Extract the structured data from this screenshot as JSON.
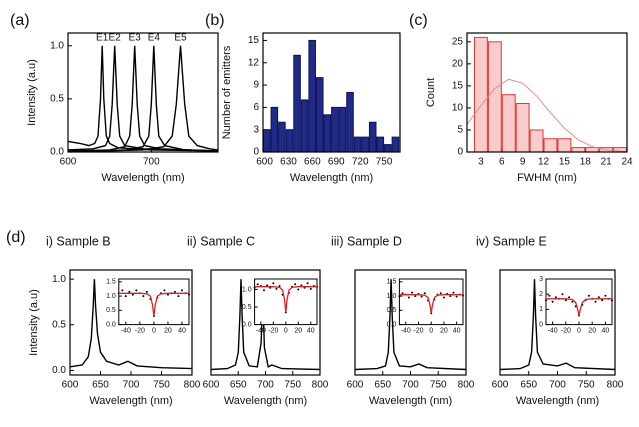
{
  "chart_data": [
    {
      "type": "line",
      "panel": "(a)",
      "x_label": "Wavelength (nm)",
      "y_label": "Intensity (a.u)",
      "xlim": [
        600,
        780
      ],
      "ylim": [
        0,
        1.12
      ],
      "xticks": [
        600,
        700
      ],
      "yticks": [
        {
          "value": 0,
          "label": "0.0"
        },
        {
          "value": 0.5,
          "label": "0.5"
        },
        {
          "value": 1,
          "label": "1.0"
        }
      ],
      "series": [
        {
          "name": "E1",
          "color": "#000000",
          "x": [
            600,
            615,
            625,
            632,
            636,
            639,
            641,
            643,
            646,
            650,
            660,
            700,
            780
          ],
          "values": [
            0.1,
            0.08,
            0.06,
            0.08,
            0.15,
            0.5,
            1.0,
            0.5,
            0.15,
            0.08,
            0.04,
            0.02,
            0.01
          ]
        },
        {
          "name": "E2",
          "color": "#000000",
          "x": [
            600,
            630,
            645,
            650,
            653,
            656,
            659,
            662,
            668,
            690,
            780
          ],
          "values": [
            0.02,
            0.03,
            0.06,
            0.15,
            0.45,
            1.0,
            0.45,
            0.15,
            0.06,
            0.03,
            0.01
          ]
        },
        {
          "name": "E3",
          "color": "#000000",
          "x": [
            600,
            650,
            668,
            674,
            677,
            680,
            683,
            686,
            692,
            710,
            780
          ],
          "values": [
            0.01,
            0.02,
            0.05,
            0.15,
            0.45,
            1.0,
            0.45,
            0.15,
            0.06,
            0.03,
            0.01
          ]
        },
        {
          "name": "E4",
          "color": "#000000",
          "x": [
            600,
            670,
            690,
            697,
            700,
            703,
            706,
            709,
            716,
            740,
            780
          ],
          "values": [
            0.0,
            0.02,
            0.05,
            0.15,
            0.45,
            1.0,
            0.45,
            0.15,
            0.06,
            0.02,
            0.01
          ]
        },
        {
          "name": "E5",
          "color": "#000000",
          "x": [
            600,
            690,
            715,
            725,
            730,
            735,
            740,
            745,
            755,
            770,
            780
          ],
          "values": [
            0.0,
            0.02,
            0.05,
            0.15,
            0.45,
            1.0,
            0.45,
            0.15,
            0.06,
            0.03,
            0.02
          ]
        }
      ]
    },
    {
      "type": "histogram",
      "panel": "(b)",
      "x_label": "Wavelength (nm)",
      "y_label": "Number of emitters",
      "xlim": [
        598,
        770
      ],
      "ylim": [
        0,
        16
      ],
      "xticks": [
        600,
        630,
        660,
        690,
        720,
        750
      ],
      "yticks": [
        0,
        3,
        6,
        9,
        12,
        15
      ],
      "color": "#1f2a8a",
      "edge_color": "#0d1450",
      "bins": [
        598,
        607.5,
        617,
        626.5,
        636,
        645.5,
        655,
        664.5,
        674,
        683.5,
        693,
        702.5,
        712,
        721.5,
        731,
        740.5,
        750,
        759.5,
        769
      ],
      "values": [
        3,
        6,
        4,
        3,
        13,
        7,
        15,
        10,
        5,
        6,
        6,
        8,
        2,
        2,
        4,
        2,
        1,
        2
      ]
    },
    {
      "type": "histogram",
      "panel": "(c)",
      "x_label": "FWHM (nm)",
      "y_label": "Count",
      "xlim": [
        1,
        24
      ],
      "ylim": [
        0,
        27
      ],
      "xticks": [
        3,
        6,
        9,
        12,
        15,
        18,
        21,
        24
      ],
      "yticks": [
        0,
        5,
        10,
        15,
        20,
        25
      ],
      "color": "#f9cccc",
      "edge_color": "#e03535",
      "bins": [
        2,
        4,
        6,
        8,
        10,
        12,
        14,
        16,
        18,
        20,
        22,
        24
      ],
      "values": [
        26,
        25,
        13,
        11,
        5,
        3,
        3,
        1,
        1,
        1,
        1
      ],
      "fit": {
        "color": "#f08080",
        "x": [
          1,
          3,
          5,
          7,
          9,
          11,
          13,
          15,
          17,
          19,
          21,
          23,
          24
        ],
        "values": [
          6.3,
          10.5,
          14.4,
          16.5,
          15.6,
          12.7,
          8.9,
          5.4,
          2.8,
          1.2,
          0.5,
          0.2,
          0.1
        ]
      }
    },
    {
      "type": "line",
      "title": "i) Sample B",
      "x_label": "Wavelength (nm)",
      "y_label": "Intensity (a.u)",
      "xlim": [
        600,
        800
      ],
      "ylim": [
        -0.05,
        1.1
      ],
      "xticks": [
        600,
        650,
        700,
        750,
        800
      ],
      "yticks": [
        {
          "value": 0,
          "label": "0.0"
        },
        {
          "value": 0.5,
          "label": "0.5"
        },
        {
          "value": 1,
          "label": "1.0"
        }
      ],
      "series": [
        {
          "color": "#000000",
          "x": [
            600,
            620,
            630,
            635,
            638,
            640,
            642,
            645,
            650,
            660,
            680,
            695,
            710,
            750,
            800
          ],
          "values": [
            0.04,
            0.06,
            0.15,
            0.35,
            0.7,
            1.0,
            0.7,
            0.4,
            0.2,
            0.1,
            0.06,
            0.1,
            0.05,
            0.03,
            0.02
          ]
        }
      ],
      "inset": {
        "xlim": [
          -50,
          50
        ],
        "ylim": [
          0,
          1.6
        ],
        "xticks": [
          -40,
          -20,
          0,
          20,
          40
        ],
        "yticks": [
          {
            "value": 0,
            "label": "0.0"
          },
          {
            "value": 0.5,
            "label": "0.5"
          },
          {
            "value": 1,
            "label": "1.0"
          },
          {
            "value": 1.5,
            "label": "1.5"
          }
        ],
        "x": [
          -50,
          -45,
          -40,
          -35,
          -30,
          -25,
          -20,
          -15,
          -10,
          -5,
          0,
          5,
          10,
          15,
          20,
          25,
          30,
          35,
          40,
          45,
          50
        ],
        "values": [
          1.1,
          1.2,
          1.0,
          1.15,
          1.05,
          1.2,
          1.1,
          1.0,
          1.15,
          0.9,
          0.3,
          0.95,
          1.1,
          1.2,
          1.05,
          1.1,
          1.15,
          1.0,
          1.2,
          1.1,
          1.05
        ],
        "fit_color": "#e02020",
        "fit_x": [
          -50,
          -20,
          -10,
          -5,
          -2,
          0,
          2,
          5,
          10,
          20,
          50
        ],
        "fit": [
          1.1,
          1.1,
          1.08,
          1.0,
          0.7,
          0.3,
          0.7,
          1.0,
          1.08,
          1.1,
          1.1
        ]
      }
    },
    {
      "type": "line",
      "title": "ii) Sample C",
      "x_label": "Wavelength (nm)",
      "xlim": [
        600,
        800
      ],
      "ylim": [
        -0.05,
        1.1
      ],
      "xticks": [
        600,
        650,
        700,
        750,
        800
      ],
      "series": [
        {
          "color": "#000000",
          "x": [
            600,
            630,
            645,
            650,
            653,
            655,
            657,
            660,
            670,
            685,
            692,
            695,
            698,
            705,
            712,
            730,
            800
          ],
          "values": [
            0.01,
            0.02,
            0.06,
            0.2,
            0.6,
            1.0,
            0.6,
            0.2,
            0.05,
            0.04,
            0.3,
            0.82,
            0.25,
            0.04,
            0.06,
            0.02,
            0.01
          ]
        }
      ],
      "inset": {
        "xlim": [
          -50,
          50
        ],
        "ylim": [
          0,
          1.3
        ],
        "xticks": [
          -40,
          -20,
          0,
          20,
          40
        ],
        "yticks": [
          {
            "value": 0,
            "label": "0.0"
          },
          {
            "value": 0.5,
            "label": "0.5"
          },
          {
            "value": 1,
            "label": "1.0"
          }
        ],
        "x": [
          -50,
          -45,
          -40,
          -35,
          -30,
          -25,
          -20,
          -15,
          -10,
          -5,
          0,
          5,
          10,
          15,
          20,
          25,
          30,
          35,
          40,
          45,
          50
        ],
        "values": [
          1.05,
          1.15,
          1.1,
          0.98,
          1.12,
          1.05,
          1.18,
          1.02,
          1.1,
          0.85,
          0.35,
          0.9,
          1.08,
          1.15,
          1.0,
          1.12,
          1.05,
          1.18,
          1.02,
          1.1,
          1.08
        ],
        "fit_color": "#e02020",
        "fit_x": [
          -50,
          -20,
          -10,
          -5,
          -2,
          0,
          2,
          5,
          10,
          20,
          50
        ],
        "fit": [
          1.08,
          1.08,
          1.06,
          0.98,
          0.7,
          0.35,
          0.7,
          0.98,
          1.06,
          1.08,
          1.08
        ]
      }
    },
    {
      "type": "line",
      "title": "iii) Sample D",
      "x_label": "Wavelength (nm)",
      "xlim": [
        600,
        800
      ],
      "ylim": [
        -0.05,
        1.1
      ],
      "xticks": [
        600,
        650,
        700,
        750,
        800
      ],
      "series": [
        {
          "color": "#000000",
          "x": [
            600,
            640,
            655,
            660,
            663,
            665,
            667,
            670,
            680,
            700,
            715,
            730,
            800
          ],
          "values": [
            0.01,
            0.02,
            0.05,
            0.2,
            0.6,
            1.0,
            0.6,
            0.2,
            0.05,
            0.04,
            0.07,
            0.03,
            0.01
          ]
        }
      ],
      "inset": {
        "xlim": [
          -50,
          50
        ],
        "ylim": [
          0,
          1.6
        ],
        "xticks": [
          -40,
          -20,
          0,
          20,
          40
        ],
        "yticks": [
          {
            "value": 0,
            "label": "0.0"
          },
          {
            "value": 0.5,
            "label": "0.5"
          },
          {
            "value": 1,
            "label": "1.0"
          },
          {
            "value": 1.5,
            "label": "1.5"
          }
        ],
        "x": [
          -50,
          -45,
          -40,
          -35,
          -30,
          -25,
          -20,
          -15,
          -10,
          -5,
          0,
          5,
          10,
          15,
          20,
          25,
          30,
          35,
          40,
          45,
          50
        ],
        "values": [
          1.0,
          1.1,
          1.05,
          0.95,
          1.12,
          1.0,
          1.08,
          0.98,
          1.1,
          0.85,
          0.4,
          0.88,
          1.05,
          1.1,
          0.95,
          1.08,
          1.0,
          1.12,
          0.98,
          1.05,
          1.02
        ],
        "fit_color": "#e02020",
        "fit_x": [
          -50,
          -20,
          -10,
          -5,
          -2,
          0,
          2,
          5,
          10,
          20,
          50
        ],
        "fit": [
          1.05,
          1.05,
          1.03,
          0.95,
          0.7,
          0.4,
          0.7,
          0.95,
          1.03,
          1.05,
          1.05
        ]
      }
    },
    {
      "type": "line",
      "title": "iv) Sample E",
      "x_label": "Wavelength (nm)",
      "xlim": [
        600,
        800
      ],
      "ylim": [
        -0.05,
        1.1
      ],
      "xticks": [
        600,
        650,
        700,
        750,
        800
      ],
      "series": [
        {
          "color": "#000000",
          "x": [
            600,
            635,
            650,
            655,
            658,
            660,
            662,
            665,
            675,
            700,
            715,
            730,
            800
          ],
          "values": [
            0.01,
            0.02,
            0.06,
            0.2,
            0.6,
            1.0,
            0.6,
            0.2,
            0.07,
            0.05,
            0.08,
            0.03,
            0.01
          ]
        }
      ],
      "inset": {
        "xlim": [
          -50,
          50
        ],
        "ylim": [
          0,
          3
        ],
        "xticks": [
          -40,
          -20,
          0,
          20,
          40
        ],
        "yticks": [
          0,
          1,
          2,
          3
        ],
        "x": [
          -50,
          -45,
          -40,
          -35,
          -30,
          -25,
          -20,
          -15,
          -10,
          -5,
          0,
          5,
          10,
          15,
          20,
          25,
          30,
          35,
          40,
          45,
          50
        ],
        "values": [
          1.6,
          1.9,
          1.5,
          1.8,
          1.7,
          2.0,
          1.6,
          1.8,
          1.5,
          1.2,
          0.6,
          1.3,
          1.6,
          1.9,
          1.7,
          1.5,
          1.8,
          1.6,
          1.9,
          1.7,
          1.6
        ],
        "fit_color": "#e02020",
        "fit_x": [
          -50,
          -20,
          -10,
          -5,
          -2,
          0,
          2,
          5,
          10,
          20,
          50
        ],
        "fit": [
          1.7,
          1.7,
          1.65,
          1.45,
          1.0,
          0.6,
          1.0,
          1.45,
          1.65,
          1.7,
          1.7
        ]
      }
    }
  ],
  "group_label": "(d)"
}
